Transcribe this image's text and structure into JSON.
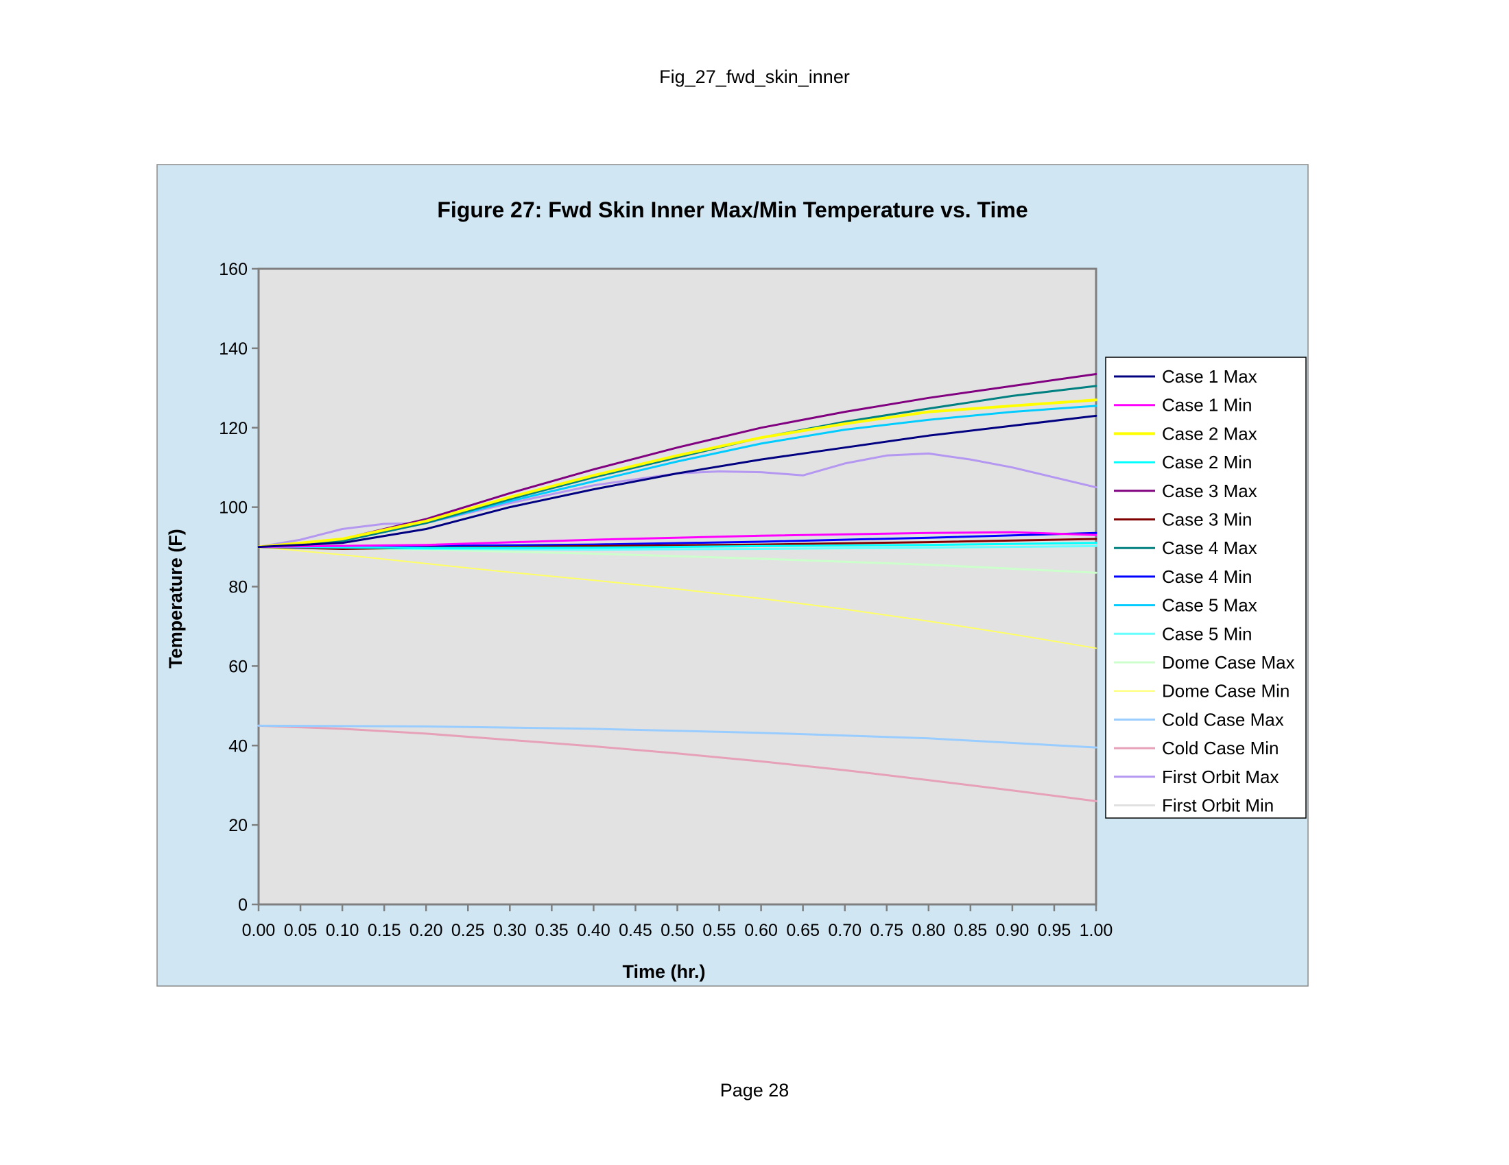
{
  "page": {
    "header": "Fig_27_fwd_skin_inner",
    "footer": "Page 28"
  },
  "chart_data": {
    "type": "line",
    "title": "Figure 27: Fwd Skin Inner Max/Min Temperature vs. Time",
    "xlabel": "Time (hr.)",
    "ylabel": "Temperature (F)",
    "xlim": [
      0,
      1
    ],
    "ylim": [
      0,
      160
    ],
    "x_ticks": [
      "0.00",
      "0.05",
      "0.10",
      "0.15",
      "0.20",
      "0.25",
      "0.30",
      "0.35",
      "0.40",
      "0.45",
      "0.50",
      "0.55",
      "0.60",
      "0.65",
      "0.70",
      "0.75",
      "0.80",
      "0.85",
      "0.90",
      "0.95",
      "1.00"
    ],
    "y_ticks": [
      "0",
      "20",
      "40",
      "60",
      "80",
      "100",
      "120",
      "140",
      "160"
    ],
    "grid": false,
    "legend_position": "right",
    "colors": {
      "outer_background": "#d0e6f3",
      "plot_background": "#e2e2e2",
      "axis": "#7f7f7f"
    },
    "series": [
      {
        "name": "Case 1 Max",
        "color": "#000080",
        "width": 3,
        "x": [
          0,
          0.1,
          0.2,
          0.3,
          0.4,
          0.5,
          0.6,
          0.7,
          0.8,
          0.9,
          1.0
        ],
        "y": [
          90,
          91,
          94.5,
          100,
          104.5,
          108.5,
          112,
          115,
          118,
          120.5,
          123
        ]
      },
      {
        "name": "Case 1 Min",
        "color": "#ff00ff",
        "width": 3,
        "x": [
          0,
          0.2,
          0.4,
          0.6,
          0.8,
          0.9,
          1.0
        ],
        "y": [
          90,
          90.5,
          91.8,
          92.8,
          93.5,
          93.7,
          93
        ]
      },
      {
        "name": "Case 2 Max",
        "color": "#ffff00",
        "width": 4,
        "x": [
          0,
          0.1,
          0.2,
          0.3,
          0.4,
          0.5,
          0.6,
          0.7,
          0.8,
          0.9,
          1.0
        ],
        "y": [
          90,
          92,
          96.5,
          102.5,
          108,
          113,
          117.5,
          121,
          124,
          125.5,
          127
        ]
      },
      {
        "name": "Case 2 Min",
        "color": "#00ffff",
        "width": 3,
        "x": [
          0,
          0.2,
          0.4,
          0.6,
          0.8,
          1.0
        ],
        "y": [
          90,
          89.7,
          89.8,
          90.2,
          90.5,
          91
        ]
      },
      {
        "name": "Case 3 Max",
        "color": "#800080",
        "width": 3,
        "x": [
          0,
          0.1,
          0.2,
          0.3,
          0.4,
          0.5,
          0.6,
          0.7,
          0.8,
          0.9,
          1.0
        ],
        "y": [
          90,
          92,
          97,
          103.5,
          109.5,
          115,
          120,
          124,
          127.5,
          130.5,
          133.5
        ]
      },
      {
        "name": "Case 3 Min",
        "color": "#800000",
        "width": 3,
        "x": [
          0,
          0.1,
          0.2,
          0.4,
          0.6,
          0.8,
          1.0
        ],
        "y": [
          90,
          89.5,
          89.8,
          90.2,
          90.6,
          91.2,
          92
        ]
      },
      {
        "name": "Case 4 Max",
        "color": "#008080",
        "width": 3,
        "x": [
          0,
          0.1,
          0.2,
          0.3,
          0.4,
          0.5,
          0.6,
          0.7,
          0.8,
          0.9,
          1.0
        ],
        "y": [
          90,
          91.5,
          96,
          102,
          107.5,
          112.5,
          117.5,
          121.5,
          124.8,
          128,
          130.5
        ]
      },
      {
        "name": "Case 4 Min",
        "color": "#0000ff",
        "width": 3,
        "x": [
          0,
          0.2,
          0.4,
          0.6,
          0.8,
          1.0
        ],
        "y": [
          90,
          90.2,
          90.6,
          91.3,
          92.3,
          93.5
        ]
      },
      {
        "name": "Case 5 Max",
        "color": "#00ccff",
        "width": 3,
        "x": [
          0,
          0.1,
          0.2,
          0.3,
          0.4,
          0.5,
          0.6,
          0.7,
          0.8,
          0.9,
          1.0
        ],
        "y": [
          90,
          91.5,
          96,
          101.5,
          106.5,
          111.5,
          116,
          119.5,
          122,
          124,
          125.5
        ]
      },
      {
        "name": "Case 5 Min",
        "color": "#66ffff",
        "width": 3,
        "x": [
          0,
          0.2,
          0.4,
          0.6,
          0.8,
          1.0
        ],
        "y": [
          90,
          89.5,
          89.3,
          89.5,
          89.8,
          90.2
        ]
      },
      {
        "name": "Dome Case Max",
        "color": "#ccffcc",
        "width": 3,
        "x": [
          0,
          0.2,
          0.4,
          0.6,
          0.8,
          1.0
        ],
        "y": [
          90,
          89.3,
          88.3,
          87,
          85.5,
          83.5
        ]
      },
      {
        "name": "Dome Case Min",
        "color": "#ffff66",
        "width": 2,
        "x": [
          0,
          0.1,
          0.2,
          0.3,
          0.4,
          0.5,
          0.6,
          0.7,
          0.8,
          0.9,
          1.0
        ],
        "y": [
          90,
          88,
          85.8,
          83.6,
          81.6,
          79.4,
          77,
          74.3,
          71.3,
          68,
          64.5
        ]
      },
      {
        "name": "Cold Case Max",
        "color": "#99ccff",
        "width": 3,
        "x": [
          0,
          0.2,
          0.4,
          0.6,
          0.8,
          1.0
        ],
        "y": [
          45,
          44.8,
          44.2,
          43.2,
          41.8,
          39.5
        ]
      },
      {
        "name": "Cold Case Min",
        "color": "#e6a0b8",
        "width": 3,
        "x": [
          0,
          0.1,
          0.2,
          0.3,
          0.4,
          0.5,
          0.6,
          0.7,
          0.8,
          0.9,
          1.0
        ],
        "y": [
          45,
          44.2,
          43,
          41.4,
          39.8,
          38,
          36,
          33.8,
          31.3,
          28.7,
          26
        ]
      },
      {
        "name": "First Orbit Max",
        "color": "#b497f0",
        "width": 3,
        "x": [
          0,
          0.05,
          0.1,
          0.15,
          0.2,
          0.3,
          0.4,
          0.5,
          0.55,
          0.6,
          0.65,
          0.7,
          0.75,
          0.8,
          0.85,
          0.9,
          0.95,
          1.0
        ],
        "y": [
          90,
          91.8,
          94.5,
          95.8,
          96,
          101,
          105.5,
          108.5,
          109,
          108.8,
          108,
          111,
          113,
          113.5,
          112,
          110,
          107.5,
          105
        ]
      },
      {
        "name": "First Orbit Min",
        "color": "#e0e0e0",
        "width": 3,
        "x": [
          0,
          0.2,
          0.4,
          0.6,
          0.8,
          1.0
        ],
        "y": [
          90,
          89.8,
          89.9,
          90.1,
          90.3,
          90.5
        ]
      }
    ]
  }
}
